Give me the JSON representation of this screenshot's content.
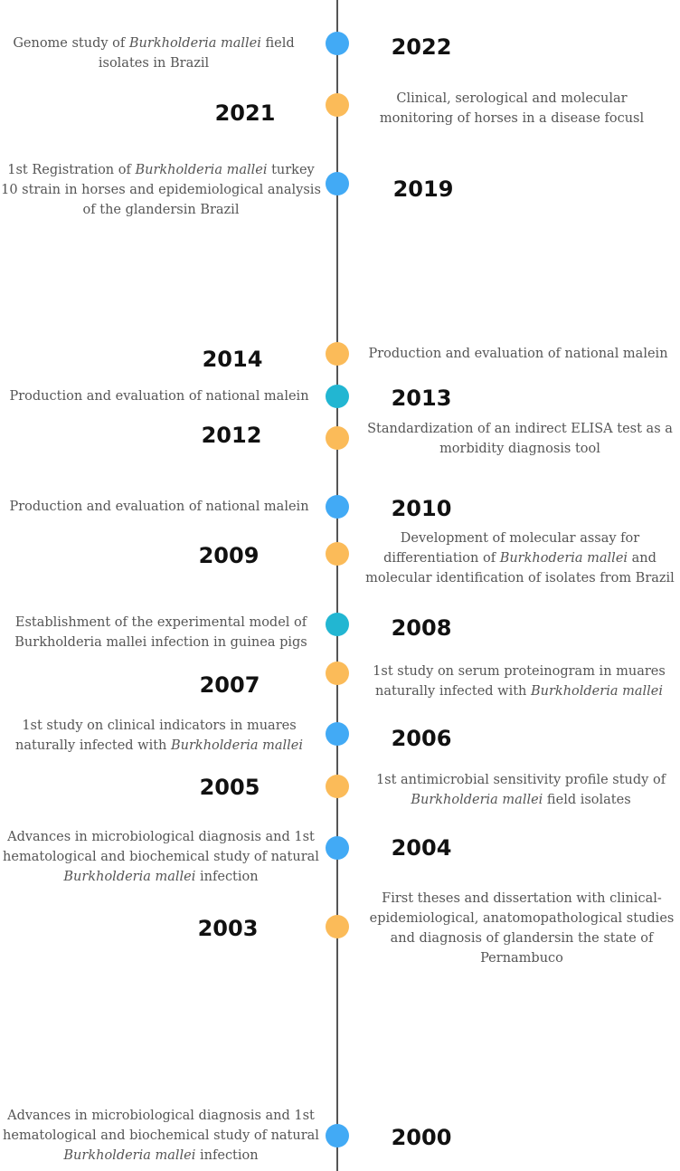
{
  "colors": {
    "axis": "#555555",
    "blue": "#42aaf5",
    "orange": "#fbbb59",
    "teal": "#22b6d2",
    "year_text": "#111111",
    "desc_text": "#555555"
  },
  "events": [
    {
      "year": "2022",
      "side": "left",
      "dot": "blue",
      "parts": [
        [
          "Genome study of ",
          false
        ],
        [
          "Burkholderia mallei",
          true
        ],
        [
          " field isolates in Brazil",
          false
        ]
      ]
    },
    {
      "year": "2021",
      "side": "right",
      "dot": "orange",
      "parts": [
        [
          "Clinical, serological and molecular monitoring of horses in a disease focusl",
          false
        ]
      ]
    },
    {
      "year": "2019",
      "side": "left",
      "dot": "blue",
      "parts": [
        [
          "1st Registration of ",
          false
        ],
        [
          "Burkholderia mallei",
          true
        ],
        [
          " turkey 10 strain in horses and epidemiological analysis of the glandersin Brazil",
          false
        ]
      ]
    },
    {
      "year": "2014",
      "side": "right",
      "dot": "orange",
      "parts": [
        [
          "Production and evaluation of national malein",
          false
        ]
      ]
    },
    {
      "year": "2013",
      "side": "left",
      "dot": "teal",
      "parts": [
        [
          "Production and evaluation of national malein",
          false
        ]
      ]
    },
    {
      "year": "2012",
      "side": "right",
      "dot": "orange",
      "parts": [
        [
          "Standardization of an indirect ELISA test as a morbidity diagnosis tool",
          false
        ]
      ]
    },
    {
      "year": "2010",
      "side": "left",
      "dot": "blue",
      "parts": [
        [
          "Production and evaluation of national malein",
          false
        ]
      ]
    },
    {
      "year": "2009",
      "side": "right",
      "dot": "orange",
      "parts": [
        [
          "Development of molecular assay for differentiation of ",
          false
        ],
        [
          "Burkhoderia mallei",
          true
        ],
        [
          " and molecular identification of isolates from Brazil",
          false
        ]
      ]
    },
    {
      "year": "2008",
      "side": "left",
      "dot": "teal",
      "parts": [
        [
          "Establishment of the experimental model of Burkholderia mallei infection in guinea pigs",
          false
        ]
      ]
    },
    {
      "year": "2007",
      "side": "right",
      "dot": "orange",
      "parts": [
        [
          "1st study on serum proteinogram in muares naturally infected with ",
          false
        ],
        [
          "Burkholderia mallei",
          true
        ]
      ]
    },
    {
      "year": "2006",
      "side": "left",
      "dot": "blue",
      "parts": [
        [
          "1st study on clinical indicators in muares naturally infected with ",
          false
        ],
        [
          "Burkholderia mallei",
          true
        ]
      ]
    },
    {
      "year": "2005",
      "side": "right",
      "dot": "orange",
      "parts": [
        [
          "1st antimicrobial sensitivity profile study of ",
          false
        ],
        [
          "Burkholderia mallei",
          true
        ],
        [
          " field isolates",
          false
        ]
      ]
    },
    {
      "year": "2004",
      "side": "left",
      "dot": "blue",
      "parts": [
        [
          "Advances in microbiological diagnosis and 1st hematological and biochemical study of natural ",
          false
        ],
        [
          "Burkholderia mallei",
          true
        ],
        [
          " infection",
          false
        ]
      ]
    },
    {
      "year": "2003",
      "side": "right",
      "dot": "orange",
      "parts": [
        [
          "First theses and dissertation with clinical-epidemiological, anatomopathological studies and diagnosis of glandersin the state of Pernambuco",
          false
        ]
      ]
    },
    {
      "year": "2000",
      "side": "left",
      "dot": "blue",
      "parts": [
        [
          "Advances in microbiological diagnosis and 1st hematological and biochemical study of natural ",
          false
        ],
        [
          "Burkholderia mallei",
          true
        ],
        [
          " infection",
          false
        ]
      ]
    }
  ]
}
